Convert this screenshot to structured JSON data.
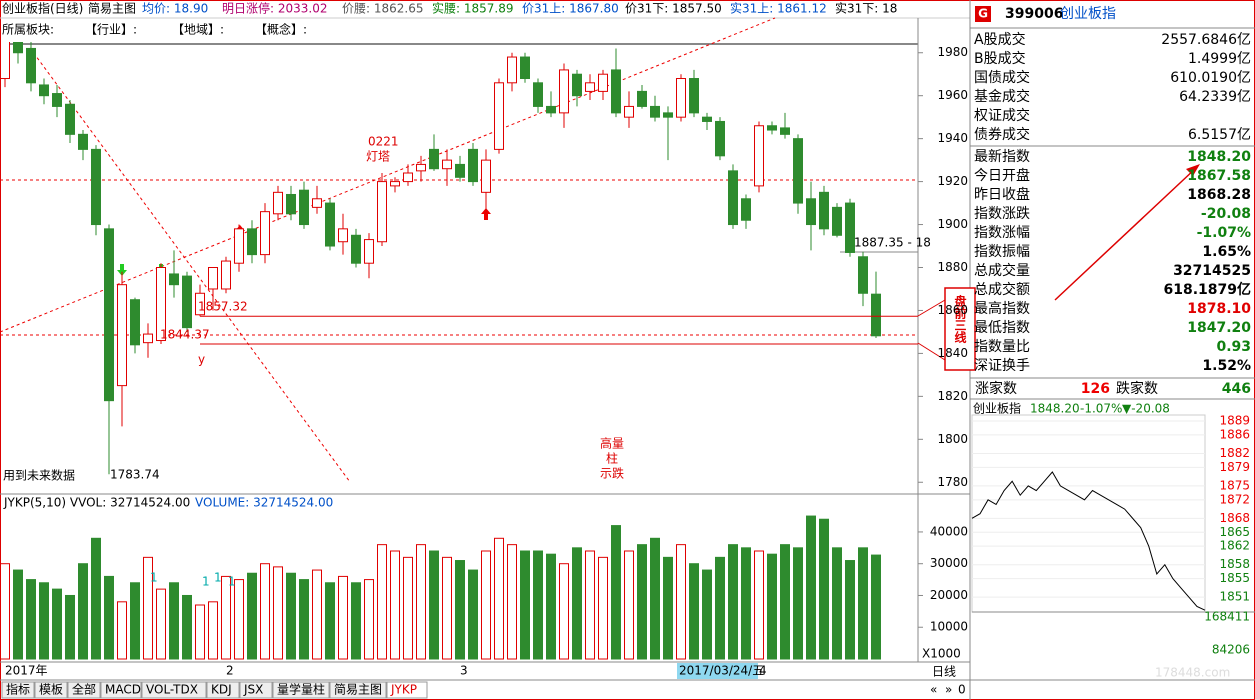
{
  "header": {
    "items": [
      {
        "text": "创业板指(日线)",
        "color": "#000"
      },
      {
        "text": "简易主图",
        "color": "#000"
      },
      {
        "text": "均价: 18.90",
        "color": "#0050c8"
      },
      {
        "text": "明日涨停: 2033.02",
        "color": "#b0006e"
      },
      {
        "text": "价腰: 1862.65",
        "color": "#555"
      },
      {
        "text": "实腰: 1857.89",
        "color": "#108010"
      },
      {
        "text": "价31上: 1867.80",
        "color": "#0050c8"
      },
      {
        "text": "价31下: 1857.50",
        "color": "#000"
      },
      {
        "text": "实31上: 1861.12",
        "color": "#0050c8"
      },
      {
        "text": "实31下: 18",
        "color": "#000"
      }
    ],
    "sectors": [
      "所属板块:",
      "【行业】:",
      "【地域】:",
      "【概念】:"
    ]
  },
  "chart_data": [
    {
      "type": "candlestick",
      "categories": [
        "2017年",
        null,
        null,
        null,
        null,
        null,
        null,
        null,
        null,
        null,
        null,
        null,
        null,
        null,
        null,
        null,
        null,
        "2",
        null,
        null,
        null,
        null,
        null,
        null,
        null,
        null,
        null,
        null,
        null,
        null,
        null,
        null,
        null,
        null,
        null,
        "3",
        null,
        null,
        null,
        null,
        null,
        null,
        null,
        null,
        null,
        null,
        null,
        null,
        null,
        null,
        null,
        null,
        null,
        null,
        null,
        null,
        null,
        null,
        "4",
        null,
        null,
        null,
        null,
        null,
        null,
        null,
        null,
        null
      ],
      "open": [
        1968,
        1988,
        1982,
        1965,
        1961,
        1956,
        1942,
        1935,
        1898,
        1825,
        1865,
        1845,
        1846,
        1877,
        1876,
        1858,
        1870,
        1870,
        1882,
        1898,
        1886,
        1905,
        1914,
        1916,
        1908,
        1910,
        1892,
        1895,
        1882,
        1892,
        1918,
        1920,
        1925,
        1935,
        1926,
        1928,
        1935,
        1915,
        1935,
        1966,
        1978,
        1966,
        1955,
        1952,
        1970,
        1962,
        1962,
        1972,
        1950,
        1962,
        1955,
        1952,
        1950,
        1968,
        1950,
        1948,
        1925,
        1912,
        1918,
        1946,
        1945,
        1940,
        1912,
        1915,
        1908,
        1910,
        1885,
        1867.58
      ],
      "high": [
        1995,
        1993,
        1985,
        1968,
        1965,
        1958,
        1944,
        1937,
        1900,
        1878,
        1866,
        1854,
        1882,
        1888,
        1878,
        1872,
        1880,
        1885,
        1900,
        1902,
        1910,
        1918,
        1918,
        1920,
        1918,
        1912,
        1905,
        1898,
        1896,
        1924,
        1922,
        1928,
        1932,
        1942,
        1935,
        1932,
        1938,
        1935,
        1968,
        1980,
        1980,
        1968,
        1962,
        1975,
        1972,
        1970,
        1972,
        1982,
        1962,
        1965,
        1960,
        1955,
        1970,
        1972,
        1952,
        1950,
        1928,
        1914,
        1948,
        1948,
        1952,
        1942,
        1920,
        1918,
        1910,
        1912,
        1887.35,
        1878.1
      ],
      "low": [
        1964,
        1975,
        1962,
        1956,
        1950,
        1938,
        1930,
        1895,
        1783.74,
        1806,
        1840,
        1838,
        1844.37,
        1866,
        1850,
        1857.32,
        1860,
        1868,
        1878,
        1882,
        1882,
        1902,
        1902,
        1898,
        1905,
        1888,
        1886,
        1880,
        1875,
        1890,
        1915,
        1918,
        1920,
        1925,
        1918,
        1920,
        1918,
        1905,
        1933,
        1962,
        1966,
        1952,
        1950,
        1945,
        1955,
        1958,
        1958,
        1950,
        1945,
        1954,
        1948,
        1930,
        1948,
        1950,
        1944,
        1930,
        1898,
        1898,
        1915,
        1942,
        1940,
        1905,
        1888,
        1895,
        1894,
        1885,
        1862,
        1847.2
      ],
      "close": [
        1988,
        1980,
        1966,
        1960,
        1955,
        1942,
        1935,
        1900,
        1818,
        1872,
        1844,
        1849,
        1880,
        1872,
        1852,
        1868,
        1880,
        1883,
        1898,
        1886,
        1906,
        1915,
        1905,
        1900,
        1912,
        1890,
        1898,
        1882,
        1893,
        1920,
        1920,
        1924,
        1928,
        1926,
        1930,
        1922,
        1920,
        1930,
        1966,
        1978,
        1968,
        1955,
        1952,
        1972,
        1960,
        1966,
        1970,
        1952,
        1955,
        1955,
        1950,
        1950,
        1968,
        1952,
        1948,
        1932,
        1900,
        1902,
        1946,
        1944,
        1942,
        1910,
        1900,
        1898,
        1895,
        1887,
        1868,
        1848.2
      ],
      "up_color": "#e00000",
      "down_color": "#2e8b2e",
      "ylim": [
        1775,
        1985
      ],
      "yticks": [
        1780,
        1800,
        1820,
        1840,
        1860,
        1880,
        1900,
        1920,
        1940,
        1960,
        1980
      ],
      "ref_lines": [
        1857.32,
        1844.37
      ],
      "annotations": {
        "lighthouse": "0221",
        "lighthouse2": "灯塔",
        "high_vol": "高量",
        "high_vol2": "柱",
        "high_vol3": "示跌",
        "low": "1783.74",
        "last": "1887.35 - 18",
        "y": "y",
        "future": "用到未来数据",
        "callout": "盘前三线",
        "cursor_date": "2017/03/24/五"
      }
    },
    {
      "type": "bar",
      "title": "JYKP(5,10) VVOL: 32714524.00",
      "subtitle": "VOLUME: 32714524.00",
      "values": [
        30000,
        28000,
        25000,
        24000,
        22000,
        20000,
        30000,
        38000,
        26000,
        18000,
        24000,
        32000,
        22000,
        24000,
        20000,
        17000,
        18000,
        26000,
        25000,
        27000,
        30000,
        29000,
        27000,
        25000,
        28000,
        24000,
        26000,
        24000,
        25000,
        36000,
        34000,
        32000,
        36000,
        34000,
        32000,
        31000,
        28000,
        34000,
        38000,
        36000,
        34000,
        34000,
        33000,
        30000,
        35000,
        34000,
        32000,
        42000,
        34000,
        36000,
        38000,
        32000,
        36000,
        30000,
        28000,
        32000,
        36000,
        35000,
        34000,
        33000,
        36000,
        35000,
        45000,
        44000,
        35000,
        31000,
        35000,
        32715
      ],
      "ylim": [
        0,
        51000
      ],
      "yticks": [
        10000,
        20000,
        30000,
        40000
      ],
      "unit": "X1000",
      "marks": [
        "1",
        "1",
        "1",
        "1"
      ]
    },
    {
      "type": "line",
      "title": "创业板指",
      "values": [
        1868,
        1869,
        1872,
        1871,
        1874,
        1876,
        1873,
        1875,
        1874,
        1876,
        1878,
        1875,
        1874,
        1873,
        1872,
        1874,
        1873,
        1872,
        1871,
        1870,
        1868,
        1866,
        1862,
        1856,
        1858,
        1855,
        1853,
        1851,
        1849,
        1848.2
      ],
      "color": "#000",
      "ylim": [
        1847.8,
        1890.3
      ],
      "yticks": [
        1889,
        1886,
        1882,
        1879,
        1875,
        1872,
        1868,
        1865,
        1862,
        1858,
        1855,
        1851
      ],
      "vol_ticks": [
        "168411",
        "84206"
      ],
      "header": [
        "1848.20",
        "-1.07%",
        "▼-20.08"
      ]
    }
  ],
  "quote_panel": {
    "flag": "G",
    "code": "399006",
    "name": "创业板指",
    "rows": [
      {
        "label": "A股成交",
        "value": "2557.6846亿",
        "color": "#000"
      },
      {
        "label": "B股成交",
        "value": "1.4999亿",
        "color": "#000"
      },
      {
        "label": "国债成交",
        "value": "610.0190亿",
        "color": "#000"
      },
      {
        "label": "基金成交",
        "value": "64.2339亿",
        "color": "#000"
      },
      {
        "label": "权证成交"
      },
      {
        "label": "债券成交",
        "value": "6.5157亿",
        "color": "#000"
      },
      {
        "label": "最新指数",
        "value": "1848.20",
        "color": "#108010"
      },
      {
        "label": "今日开盘",
        "value": "1867.58",
        "color": "#108010"
      },
      {
        "label": "昨日收盘",
        "value": "1868.28",
        "color": "#000"
      },
      {
        "label": "指数涨跌",
        "value": "-20.08",
        "color": "#108010"
      },
      {
        "label": "指数涨幅",
        "value": "-1.07%",
        "color": "#108010"
      },
      {
        "label": "指数振幅",
        "value": "1.65%",
        "color": "#000"
      },
      {
        "label": "总成交量",
        "value": "32714525",
        "color": "#000"
      },
      {
        "label": "总成交额",
        "value": "618.1879亿",
        "color": "#000"
      },
      {
        "label": "最高指数",
        "value": "1878.10",
        "color": "#e00000"
      },
      {
        "label": "最低指数",
        "value": "1847.20",
        "color": "#108010"
      },
      {
        "label": "指数量比",
        "value": "0.93",
        "color": "#108010"
      },
      {
        "label": "深证换手",
        "value": "1.52%",
        "color": "#000"
      }
    ],
    "breadth": [
      "涨家数",
      "126",
      "跌家数",
      "446"
    ],
    "period": "日线",
    "nav": [
      "«",
      "»",
      "0"
    ],
    "watermark": "178448.com"
  },
  "tabs": [
    "指标",
    "模板",
    "全部",
    "MACD",
    "VOL-TDX",
    "KDJ",
    "JSX",
    "量学量柱",
    "简易主图",
    "JYKP"
  ]
}
